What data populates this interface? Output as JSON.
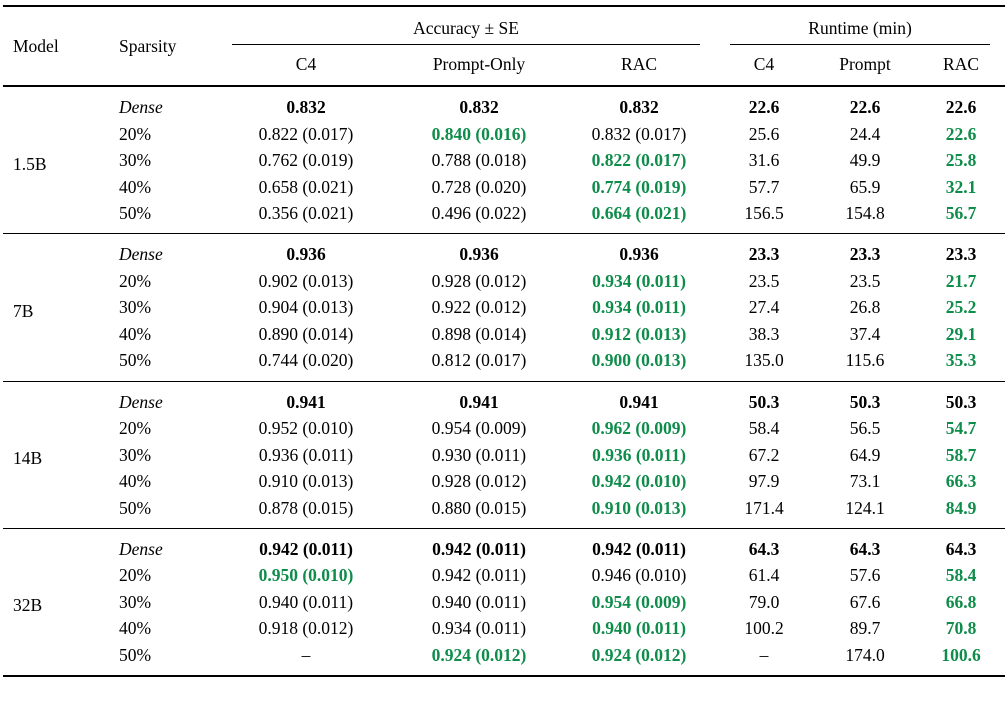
{
  "colors": {
    "highlight_green": "#0e8c4a",
    "text": "#000000",
    "rule": "#000000"
  },
  "header": {
    "model": "Model",
    "sparsity": "Sparsity",
    "groups": [
      {
        "label": "Accuracy ± SE",
        "cols": [
          "C4",
          "Prompt-Only",
          "RAC"
        ]
      },
      {
        "label": "Runtime (min)",
        "cols": [
          "C4",
          "Prompt",
          "RAC"
        ]
      }
    ]
  },
  "blocks": [
    {
      "model": "1.5B",
      "rows": [
        {
          "sparsity": "Dense",
          "italic": true,
          "cells": [
            {
              "t": "0.832",
              "b": true,
              "g": false
            },
            {
              "t": "0.832",
              "b": true,
              "g": false
            },
            {
              "t": "0.832",
              "b": true,
              "g": false
            },
            {
              "t": "22.6",
              "b": true,
              "g": false
            },
            {
              "t": "22.6",
              "b": true,
              "g": false
            },
            {
              "t": "22.6",
              "b": true,
              "g": false
            }
          ]
        },
        {
          "sparsity": "20%",
          "italic": false,
          "cells": [
            {
              "t": "0.822 (0.017)",
              "b": false,
              "g": false
            },
            {
              "t": "0.840 (0.016)",
              "b": true,
              "g": true
            },
            {
              "t": "0.832 (0.017)",
              "b": false,
              "g": false
            },
            {
              "t": "25.6",
              "b": false,
              "g": false
            },
            {
              "t": "24.4",
              "b": false,
              "g": false
            },
            {
              "t": "22.6",
              "b": true,
              "g": true
            }
          ]
        },
        {
          "sparsity": "30%",
          "italic": false,
          "cells": [
            {
              "t": "0.762 (0.019)",
              "b": false,
              "g": false
            },
            {
              "t": "0.788 (0.018)",
              "b": false,
              "g": false
            },
            {
              "t": "0.822 (0.017)",
              "b": true,
              "g": true
            },
            {
              "t": "31.6",
              "b": false,
              "g": false
            },
            {
              "t": "49.9",
              "b": false,
              "g": false
            },
            {
              "t": "25.8",
              "b": true,
              "g": true
            }
          ]
        },
        {
          "sparsity": "40%",
          "italic": false,
          "cells": [
            {
              "t": "0.658 (0.021)",
              "b": false,
              "g": false
            },
            {
              "t": "0.728 (0.020)",
              "b": false,
              "g": false
            },
            {
              "t": "0.774 (0.019)",
              "b": true,
              "g": true
            },
            {
              "t": "57.7",
              "b": false,
              "g": false
            },
            {
              "t": "65.9",
              "b": false,
              "g": false
            },
            {
              "t": "32.1",
              "b": true,
              "g": true
            }
          ]
        },
        {
          "sparsity": "50%",
          "italic": false,
          "cells": [
            {
              "t": "0.356 (0.021)",
              "b": false,
              "g": false
            },
            {
              "t": "0.496 (0.022)",
              "b": false,
              "g": false
            },
            {
              "t": "0.664 (0.021)",
              "b": true,
              "g": true
            },
            {
              "t": "156.5",
              "b": false,
              "g": false
            },
            {
              "t": "154.8",
              "b": false,
              "g": false
            },
            {
              "t": "56.7",
              "b": true,
              "g": true
            }
          ]
        }
      ]
    },
    {
      "model": "7B",
      "rows": [
        {
          "sparsity": "Dense",
          "italic": true,
          "cells": [
            {
              "t": "0.936",
              "b": true,
              "g": false
            },
            {
              "t": "0.936",
              "b": true,
              "g": false
            },
            {
              "t": "0.936",
              "b": true,
              "g": false
            },
            {
              "t": "23.3",
              "b": true,
              "g": false
            },
            {
              "t": "23.3",
              "b": true,
              "g": false
            },
            {
              "t": "23.3",
              "b": true,
              "g": false
            }
          ]
        },
        {
          "sparsity": "20%",
          "italic": false,
          "cells": [
            {
              "t": "0.902 (0.013)",
              "b": false,
              "g": false
            },
            {
              "t": "0.928 (0.012)",
              "b": false,
              "g": false
            },
            {
              "t": "0.934 (0.011)",
              "b": true,
              "g": true
            },
            {
              "t": "23.5",
              "b": false,
              "g": false
            },
            {
              "t": "23.5",
              "b": false,
              "g": false
            },
            {
              "t": "21.7",
              "b": true,
              "g": true
            }
          ]
        },
        {
          "sparsity": "30%",
          "italic": false,
          "cells": [
            {
              "t": "0.904 (0.013)",
              "b": false,
              "g": false
            },
            {
              "t": "0.922 (0.012)",
              "b": false,
              "g": false
            },
            {
              "t": "0.934 (0.011)",
              "b": true,
              "g": true
            },
            {
              "t": "27.4",
              "b": false,
              "g": false
            },
            {
              "t": "26.8",
              "b": false,
              "g": false
            },
            {
              "t": "25.2",
              "b": true,
              "g": true
            }
          ]
        },
        {
          "sparsity": "40%",
          "italic": false,
          "cells": [
            {
              "t": "0.890 (0.014)",
              "b": false,
              "g": false
            },
            {
              "t": "0.898 (0.014)",
              "b": false,
              "g": false
            },
            {
              "t": "0.912 (0.013)",
              "b": true,
              "g": true
            },
            {
              "t": "38.3",
              "b": false,
              "g": false
            },
            {
              "t": "37.4",
              "b": false,
              "g": false
            },
            {
              "t": "29.1",
              "b": true,
              "g": true
            }
          ]
        },
        {
          "sparsity": "50%",
          "italic": false,
          "cells": [
            {
              "t": "0.744 (0.020)",
              "b": false,
              "g": false
            },
            {
              "t": "0.812 (0.017)",
              "b": false,
              "g": false
            },
            {
              "t": "0.900 (0.013)",
              "b": true,
              "g": true
            },
            {
              "t": "135.0",
              "b": false,
              "g": false
            },
            {
              "t": "115.6",
              "b": false,
              "g": false
            },
            {
              "t": "35.3",
              "b": true,
              "g": true
            }
          ]
        }
      ]
    },
    {
      "model": "14B",
      "rows": [
        {
          "sparsity": "Dense",
          "italic": true,
          "cells": [
            {
              "t": "0.941",
              "b": true,
              "g": false
            },
            {
              "t": "0.941",
              "b": true,
              "g": false
            },
            {
              "t": "0.941",
              "b": true,
              "g": false
            },
            {
              "t": "50.3",
              "b": true,
              "g": false
            },
            {
              "t": "50.3",
              "b": true,
              "g": false
            },
            {
              "t": "50.3",
              "b": true,
              "g": false
            }
          ]
        },
        {
          "sparsity": "20%",
          "italic": false,
          "cells": [
            {
              "t": "0.952 (0.010)",
              "b": false,
              "g": false
            },
            {
              "t": "0.954 (0.009)",
              "b": false,
              "g": false
            },
            {
              "t": "0.962 (0.009)",
              "b": true,
              "g": true
            },
            {
              "t": "58.4",
              "b": false,
              "g": false
            },
            {
              "t": "56.5",
              "b": false,
              "g": false
            },
            {
              "t": "54.7",
              "b": true,
              "g": true
            }
          ]
        },
        {
          "sparsity": "30%",
          "italic": false,
          "cells": [
            {
              "t": "0.936 (0.011)",
              "b": false,
              "g": false
            },
            {
              "t": "0.930 (0.011)",
              "b": false,
              "g": false
            },
            {
              "t": "0.936 (0.011)",
              "b": true,
              "g": true
            },
            {
              "t": "67.2",
              "b": false,
              "g": false
            },
            {
              "t": "64.9",
              "b": false,
              "g": false
            },
            {
              "t": "58.7",
              "b": true,
              "g": true
            }
          ]
        },
        {
          "sparsity": "40%",
          "italic": false,
          "cells": [
            {
              "t": "0.910 (0.013)",
              "b": false,
              "g": false
            },
            {
              "t": "0.928 (0.012)",
              "b": false,
              "g": false
            },
            {
              "t": "0.942 (0.010)",
              "b": true,
              "g": true
            },
            {
              "t": "97.9",
              "b": false,
              "g": false
            },
            {
              "t": "73.1",
              "b": false,
              "g": false
            },
            {
              "t": "66.3",
              "b": true,
              "g": true
            }
          ]
        },
        {
          "sparsity": "50%",
          "italic": false,
          "cells": [
            {
              "t": "0.878 (0.015)",
              "b": false,
              "g": false
            },
            {
              "t": "0.880 (0.015)",
              "b": false,
              "g": false
            },
            {
              "t": "0.910 (0.013)",
              "b": true,
              "g": true
            },
            {
              "t": "171.4",
              "b": false,
              "g": false
            },
            {
              "t": "124.1",
              "b": false,
              "g": false
            },
            {
              "t": "84.9",
              "b": true,
              "g": true
            }
          ]
        }
      ]
    },
    {
      "model": "32B",
      "rows": [
        {
          "sparsity": "Dense",
          "italic": true,
          "cells": [
            {
              "t": "0.942 (0.011)",
              "b": true,
              "g": false
            },
            {
              "t": "0.942 (0.011)",
              "b": true,
              "g": false
            },
            {
              "t": "0.942 (0.011)",
              "b": true,
              "g": false
            },
            {
              "t": "64.3",
              "b": true,
              "g": false
            },
            {
              "t": "64.3",
              "b": true,
              "g": false
            },
            {
              "t": "64.3",
              "b": true,
              "g": false
            }
          ]
        },
        {
          "sparsity": "20%",
          "italic": false,
          "cells": [
            {
              "t": "0.950 (0.010)",
              "b": true,
              "g": true
            },
            {
              "t": "0.942 (0.011)",
              "b": false,
              "g": false
            },
            {
              "t": "0.946 (0.010)",
              "b": false,
              "g": false
            },
            {
              "t": "61.4",
              "b": false,
              "g": false
            },
            {
              "t": "57.6",
              "b": false,
              "g": false
            },
            {
              "t": "58.4",
              "b": true,
              "g": true
            }
          ]
        },
        {
          "sparsity": "30%",
          "italic": false,
          "cells": [
            {
              "t": "0.940 (0.011)",
              "b": false,
              "g": false
            },
            {
              "t": "0.940 (0.011)",
              "b": false,
              "g": false
            },
            {
              "t": "0.954 (0.009)",
              "b": true,
              "g": true
            },
            {
              "t": "79.0",
              "b": false,
              "g": false
            },
            {
              "t": "67.6",
              "b": false,
              "g": false
            },
            {
              "t": "66.8",
              "b": true,
              "g": true
            }
          ]
        },
        {
          "sparsity": "40%",
          "italic": false,
          "cells": [
            {
              "t": "0.918 (0.012)",
              "b": false,
              "g": false
            },
            {
              "t": "0.934 (0.011)",
              "b": false,
              "g": false
            },
            {
              "t": "0.940 (0.011)",
              "b": true,
              "g": true
            },
            {
              "t": "100.2",
              "b": false,
              "g": false
            },
            {
              "t": "89.7",
              "b": false,
              "g": false
            },
            {
              "t": "70.8",
              "b": true,
              "g": true
            }
          ]
        },
        {
          "sparsity": "50%",
          "italic": false,
          "cells": [
            {
              "t": "–",
              "b": false,
              "g": false
            },
            {
              "t": "0.924 (0.012)",
              "b": true,
              "g": true
            },
            {
              "t": "0.924 (0.012)",
              "b": true,
              "g": true
            },
            {
              "t": "–",
              "b": false,
              "g": false
            },
            {
              "t": "174.0",
              "b": false,
              "g": false
            },
            {
              "t": "100.6",
              "b": true,
              "g": true
            }
          ]
        }
      ]
    }
  ]
}
